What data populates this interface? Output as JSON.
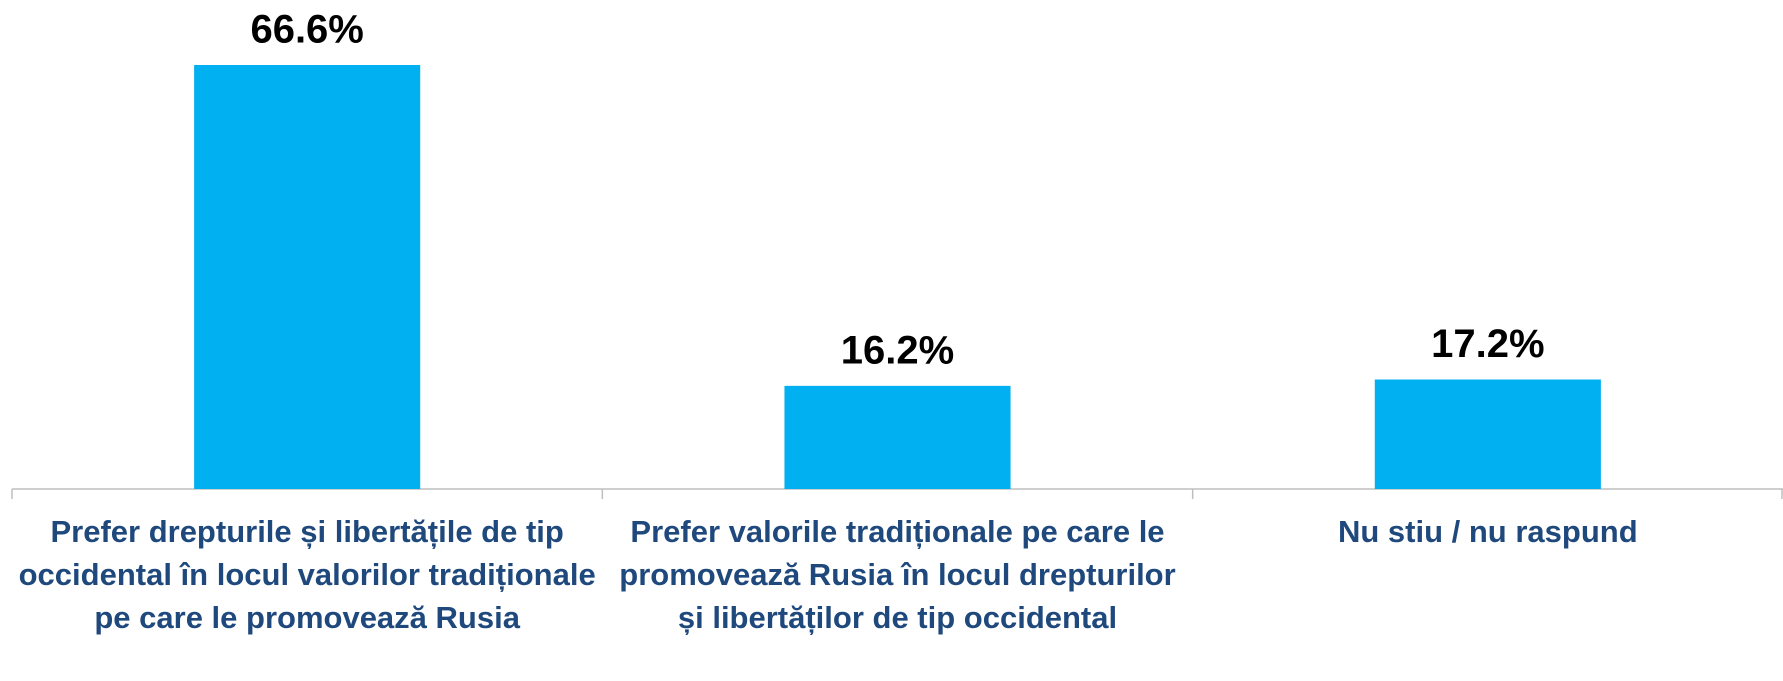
{
  "chart_data": {
    "type": "bar",
    "categories": [
      "Prefer drepturile și libertățile de tip occidental în locul valorilor tradiționale pe care le promovează Rusia",
      "Prefer valorile tradiționale pe care le promovează Rusia în locul drepturilor și libertăților de tip occidental",
      "Nu stiu / nu raspund"
    ],
    "values": [
      66.6,
      16.2,
      17.2
    ],
    "value_labels": [
      "66.6%",
      "16.2%",
      "17.2%"
    ],
    "color": "#00b0f0"
  }
}
